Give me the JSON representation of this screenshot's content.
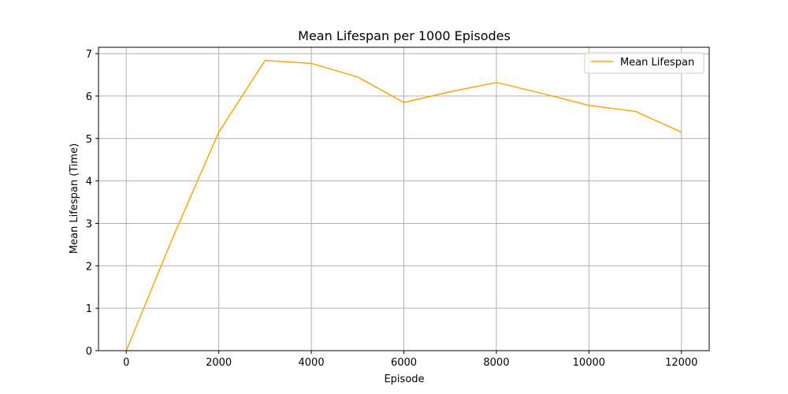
{
  "chart_data": {
    "type": "line",
    "title": "Mean Lifespan per 1000 Episodes",
    "xlabel": "Episode",
    "ylabel": "Mean Lifespan (Time)",
    "xlim": [
      -600,
      12600
    ],
    "ylim": [
      0,
      7.15
    ],
    "xticks": [
      0,
      2000,
      4000,
      6000,
      8000,
      10000,
      12000
    ],
    "yticks": [
      0,
      1,
      2,
      3,
      4,
      5,
      6,
      7
    ],
    "grid": true,
    "legend_position": "top-right",
    "series": [
      {
        "name": "Mean Lifespan",
        "color": "#ffa500",
        "x": [
          0,
          1000,
          2000,
          3000,
          4000,
          5000,
          6000,
          7000,
          8000,
          9000,
          10000,
          11000,
          12000
        ],
        "y": [
          0.0,
          2.65,
          5.15,
          6.84,
          6.77,
          6.45,
          5.85,
          6.1,
          6.32,
          6.06,
          5.78,
          5.64,
          5.15
        ]
      }
    ]
  }
}
